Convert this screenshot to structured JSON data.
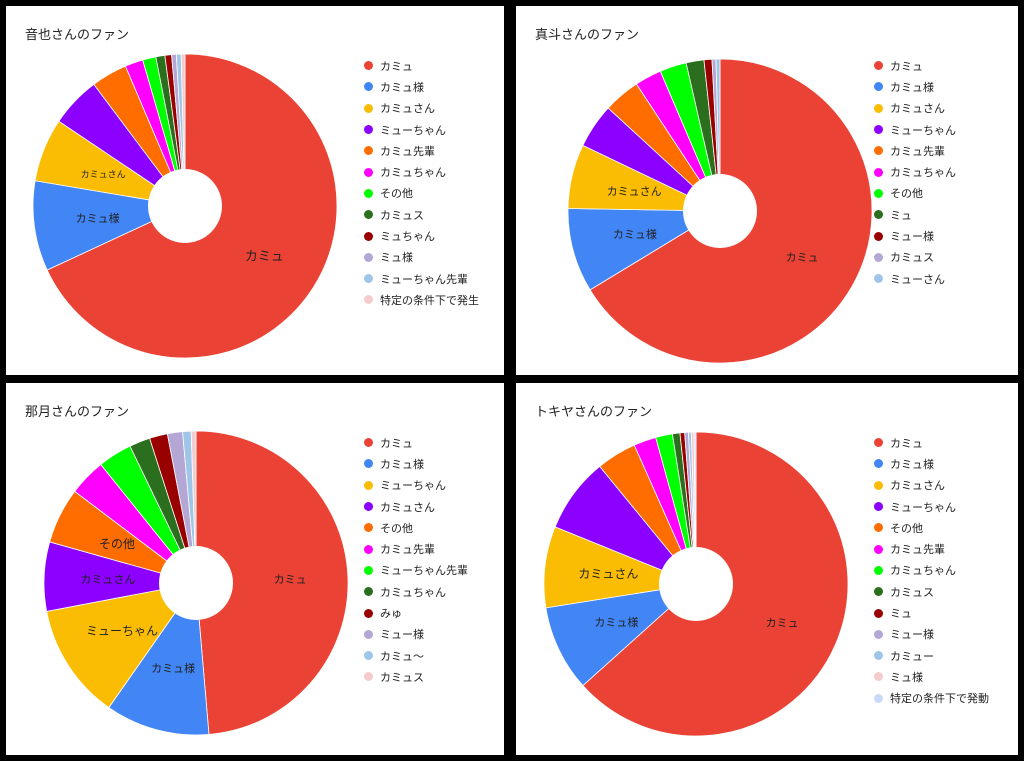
{
  "chart_data": [
    {
      "type": "pie",
      "title": "音也さんのファン",
      "categories": [
        "カミュ",
        "カミュ様",
        "カミュさん",
        "ミューちゃん",
        "カミュ先輩",
        "カミュちゃん",
        "その他",
        "カミュス",
        "ミュちゃん",
        "ミュ様",
        "ミューちゃん先輩",
        "特定の条件下で発生"
      ],
      "values": [
        67.5,
        9.5,
        6.7,
        5.3,
        3.8,
        1.9,
        1.4,
        0.95,
        0.7,
        0.5,
        0.5,
        0.4
      ],
      "colors": [
        "#ea4335",
        "#4285f4",
        "#fbbc04",
        "#8b00ff",
        "#ff6d01",
        "#ff00ff",
        "#00ff00",
        "#2a6e1e",
        "#990000",
        "#b4a7d6",
        "#9fc5e8",
        "#f4cccc"
      ],
      "slice_labels": [
        "カミュ",
        "カミュ様",
        "カミュさん",
        "",
        "",
        "",
        "",
        "",
        "",
        "",
        "",
        ""
      ],
      "legend_position": "right"
    },
    {
      "type": "pie",
      "title": "真斗さんのファン",
      "categories": [
        "カミュ",
        "カミュ様",
        "カミュさん",
        "ミューちゃん",
        "カミュ先輩",
        "カミュちゃん",
        "その他",
        "ミュ",
        "ミュー様",
        "カミュス",
        "ミューさん"
      ],
      "values": [
        63.0,
        8.5,
        6.5,
        4.5,
        3.7,
        2.7,
        2.7,
        1.8,
        0.8,
        0.4,
        0.4
      ],
      "colors": [
        "#ea4335",
        "#4285f4",
        "#fbbc04",
        "#8b00ff",
        "#ff6d01",
        "#ff00ff",
        "#00ff00",
        "#2a6e1e",
        "#990000",
        "#b4a7d6",
        "#9fc5e8"
      ],
      "slice_labels": [
        "カミュ",
        "カミュ様",
        "カミュさん",
        "",
        "",
        "",
        "",
        "",
        "",
        "",
        ""
      ],
      "legend_position": "right"
    },
    {
      "type": "pie",
      "title": "那月さんのファン",
      "categories": [
        "カミュ",
        "カミュ様",
        "ミューちゃん",
        "カミュさん",
        "その他",
        "カミュ先輩",
        "ミューちゃん先輩",
        "カミュちゃん",
        "みゅ",
        "ミュー様",
        "カミュ〜",
        "カミュス"
      ],
      "values": [
        48.3,
        11.0,
        12.2,
        7.3,
        5.9,
        3.9,
        3.6,
        2.2,
        1.9,
        1.6,
        0.9,
        0.5
      ],
      "colors": [
        "#ea4335",
        "#4285f4",
        "#fbbc04",
        "#8b00ff",
        "#ff6d01",
        "#ff00ff",
        "#00ff00",
        "#2a6e1e",
        "#990000",
        "#b4a7d6",
        "#9fc5e8",
        "#f4cccc"
      ],
      "slice_labels": [
        "カミュ",
        "カミュ様",
        "ミューちゃん",
        "カミュさん",
        "その他",
        "",
        "",
        "",
        "",
        "",
        "",
        ""
      ],
      "legend_position": "right"
    },
    {
      "type": "pie",
      "title": "トキヤさんのファン",
      "categories": [
        "カミュ",
        "カミュ様",
        "カミュさん",
        "ミューちゃん",
        "その他",
        "カミュ先輩",
        "カミュちゃん",
        "カミュス",
        "ミュ",
        "ミュー様",
        "カミュー",
        "ミュ様",
        "特定の条件下で発動"
      ],
      "values": [
        63.8,
        9.2,
        8.7,
        8.0,
        4.3,
        2.4,
        1.8,
        0.8,
        0.5,
        0.4,
        0.3,
        0.3,
        0.2
      ],
      "colors": [
        "#ea4335",
        "#4285f4",
        "#fbbc04",
        "#8b00ff",
        "#ff6d01",
        "#ff00ff",
        "#00ff00",
        "#2a6e1e",
        "#990000",
        "#b4a7d6",
        "#9fc5e8",
        "#f4cccc",
        "#c9daf8"
      ],
      "slice_labels": [
        "カミュ",
        "カミュ様",
        "カミュさん",
        "",
        "",
        "",
        "",
        "",
        "",
        "",
        "",
        "",
        ""
      ],
      "legend_position": "right"
    }
  ]
}
